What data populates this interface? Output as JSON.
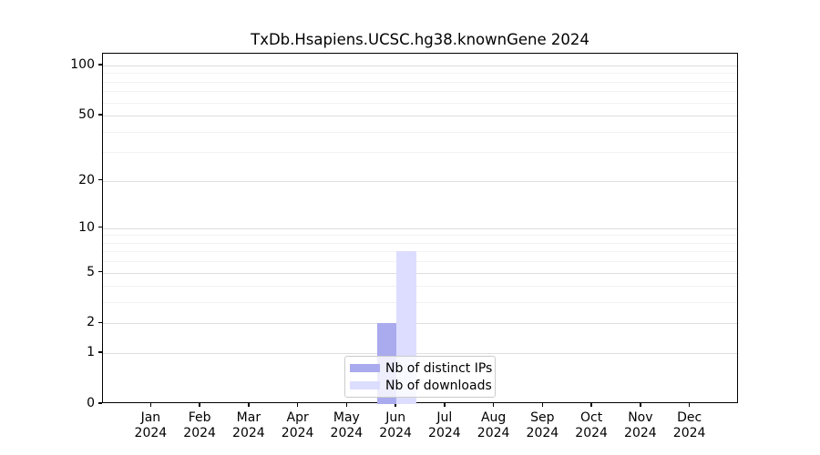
{
  "chart_data": {
    "type": "bar",
    "title": "TxDb.Hsapiens.UCSC.hg38.knownGene 2024",
    "categories": [
      {
        "month": "Jan",
        "year": "2024"
      },
      {
        "month": "Feb",
        "year": "2024"
      },
      {
        "month": "Mar",
        "year": "2024"
      },
      {
        "month": "Apr",
        "year": "2024"
      },
      {
        "month": "May",
        "year": "2024"
      },
      {
        "month": "Jun",
        "year": "2024"
      },
      {
        "month": "Jul",
        "year": "2024"
      },
      {
        "month": "Aug",
        "year": "2024"
      },
      {
        "month": "Sep",
        "year": "2024"
      },
      {
        "month": "Oct",
        "year": "2024"
      },
      {
        "month": "Nov",
        "year": "2024"
      },
      {
        "month": "Dec",
        "year": "2024"
      }
    ],
    "series": [
      {
        "name": "Nb of distinct IPs",
        "color": "#aaaaee",
        "values": [
          0,
          0,
          0,
          0,
          0,
          2,
          0,
          0,
          0,
          0,
          0,
          0
        ]
      },
      {
        "name": "Nb of downloads",
        "color": "#ddddff",
        "values": [
          0,
          0,
          0,
          0,
          0,
          7,
          0,
          0,
          0,
          0,
          0,
          0
        ]
      }
    ],
    "yscale": "log1p",
    "ylim": [
      0,
      115
    ],
    "yticks": [
      0,
      1,
      2,
      5,
      10,
      20,
      50,
      100
    ],
    "minor_gridlines": [
      3,
      4,
      6,
      7,
      8,
      9,
      30,
      40,
      60,
      70,
      80,
      90
    ],
    "grid": "horizontal",
    "legend_position": "bottom-center",
    "colors": {
      "spine": "#000000",
      "major_grid": "#dedede",
      "minor_grid": "#f2f2f2",
      "legend_border": "#cccccc",
      "text": "#000000"
    }
  }
}
